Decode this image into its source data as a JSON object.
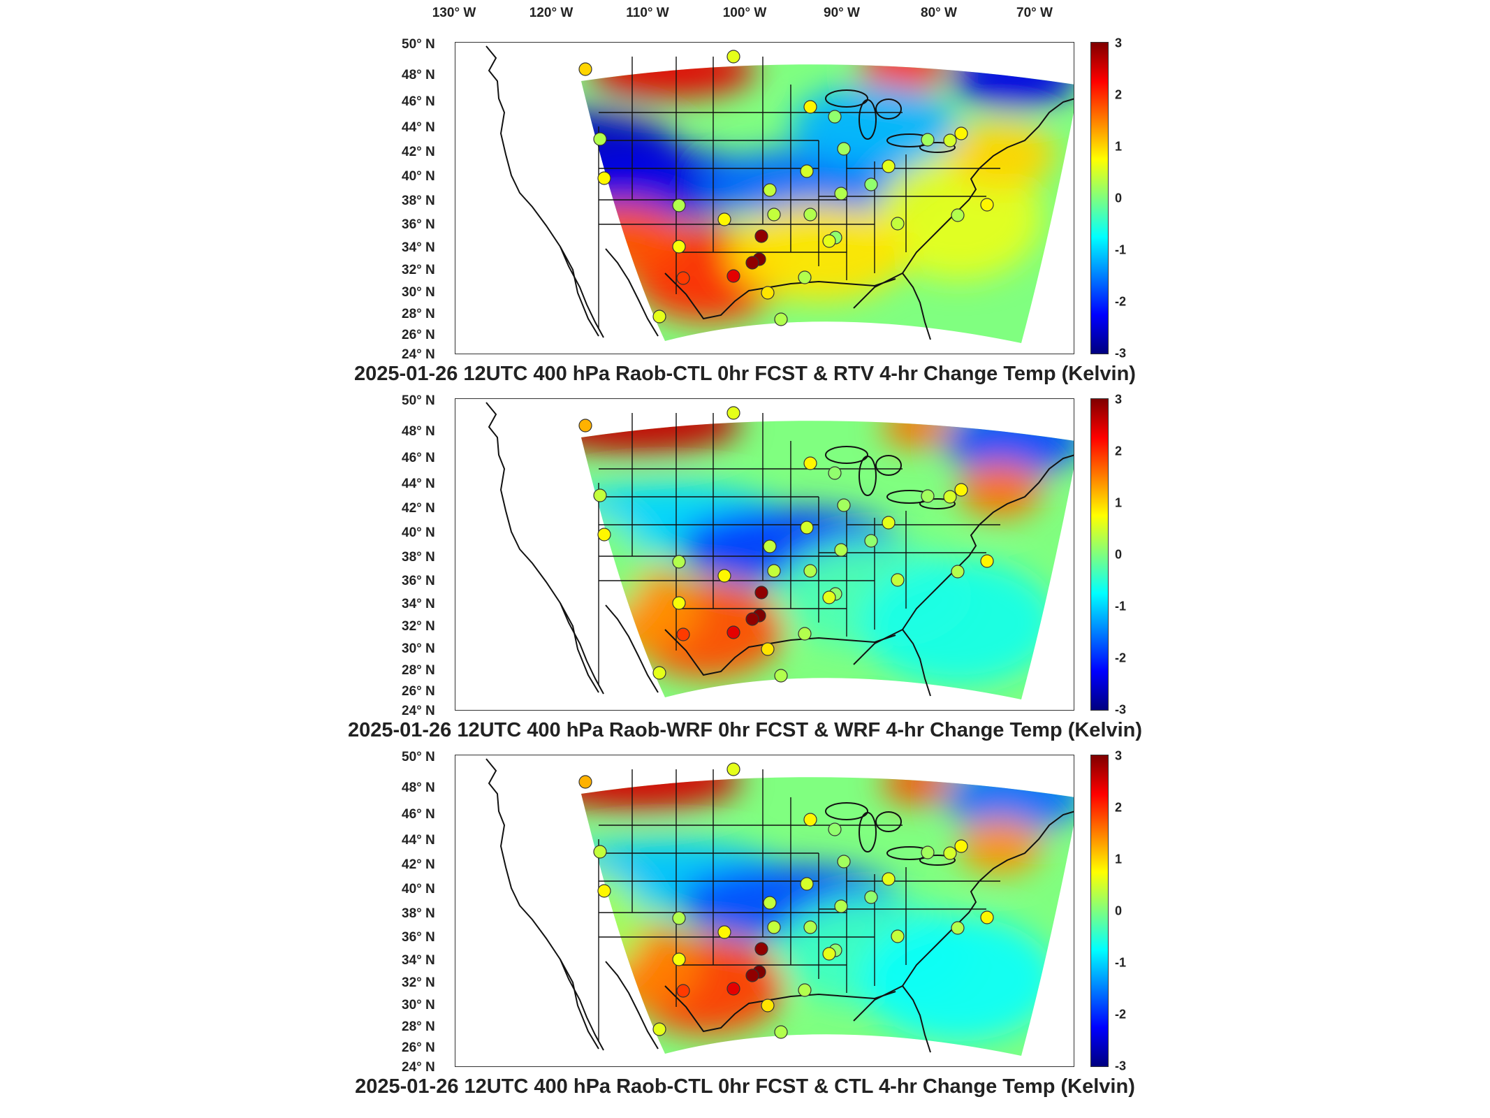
{
  "longitude_labels": [
    "130° W",
    "120° W",
    "110° W",
    "100° W",
    "90° W",
    "80° W",
    "70° W"
  ],
  "latitude_labels": [
    "50° N",
    "48° N",
    "46° N",
    "44° N",
    "42° N",
    "40° N",
    "38° N",
    "36° N",
    "34° N",
    "32° N",
    "30° N",
    "28° N",
    "26° N",
    "24° N"
  ],
  "colorbar": {
    "ticks": [
      "3",
      "2",
      "1",
      "0",
      "-1",
      "-2",
      "-3"
    ],
    "range": [
      -3,
      3
    ],
    "colormap": "jet",
    "colors": [
      "#00007f",
      "#0000ff",
      "#007fff",
      "#00ffff",
      "#7fff7f",
      "#ffff00",
      "#ff7f00",
      "#ff0000",
      "#7f0000"
    ]
  },
  "panels": [
    {
      "caption": "2025-01-26 12UTC 400 hPa Raob-CTL 0hr FCST & RTV 4-hr Change Temp (Kelvin)",
      "variant": "rtv"
    },
    {
      "caption": "2025-01-26 12UTC 400 hPa Raob-WRF 0hr FCST & WRF 4-hr Change Temp (Kelvin)",
      "variant": "wrf"
    },
    {
      "caption": "2025-01-26 12UTC 400 hPa Raob-CTL 0hr FCST & CTL 4-hr Change Temp (Kelvin)",
      "variant": "ctl"
    }
  ]
}
